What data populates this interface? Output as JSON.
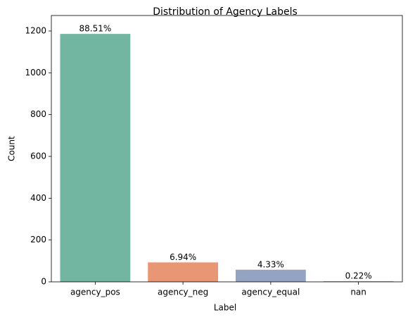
{
  "chart_data": {
    "type": "bar",
    "title": "Distribution of Agency Labels",
    "x_label": "Label",
    "y_label": "Count",
    "categories": [
      "agency_pos",
      "agency_neg",
      "agency_equal",
      "nan"
    ],
    "values": [
      1186,
      93,
      58,
      3
    ],
    "value_labels": [
      "88.51%",
      "6.94%",
      "4.33%",
      "0.22%"
    ],
    "colors": [
      "#72b6a1",
      "#e99675",
      "#95a3c3",
      "#da8bc3"
    ],
    "ylim": [
      0,
      1274
    ],
    "yticks": [
      0,
      200,
      400,
      600,
      800,
      1000,
      1200
    ],
    "grid": false
  }
}
